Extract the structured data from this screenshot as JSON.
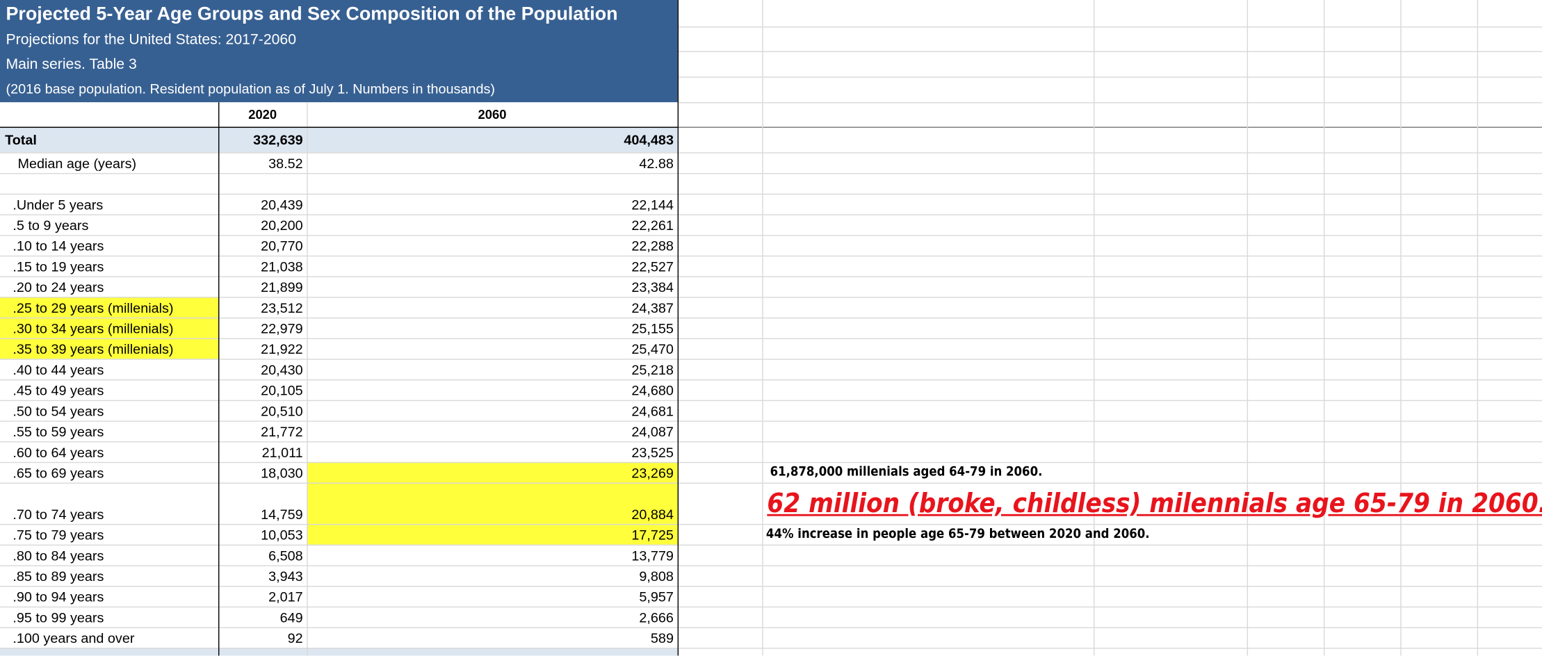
{
  "header": {
    "title": "Projected 5-Year Age Groups and Sex Composition of the Population",
    "subtitle": "Projections for the United States: 2017-2060",
    "series": "Main series. Table 3",
    "note": "(2016 base population. Resident population as of July 1. Numbers in thousands)"
  },
  "table": {
    "columns": [
      "2020",
      "2060"
    ],
    "rows": [
      [
        "Total",
        "332,639",
        "404,483"
      ],
      [
        "Median age (years)",
        "38.52",
        "42.88"
      ],
      [
        ".Under 5 years",
        "20,439",
        "22,144"
      ],
      [
        ".5 to 9 years",
        "20,200",
        "22,261"
      ],
      [
        ".10 to 14 years",
        "20,770",
        "22,288"
      ],
      [
        ".15 to 19 years",
        "21,038",
        "22,527"
      ],
      [
        ".20 to 24 years",
        "21,899",
        "23,384"
      ],
      [
        ".25 to 29 years (millenials)",
        "23,512",
        "24,387"
      ],
      [
        ".30 to 34 years (millenials)",
        "22,979",
        "25,155"
      ],
      [
        ".35 to 39 years (millenials)",
        "21,922",
        "25,470"
      ],
      [
        ".40 to 44 years",
        "20,430",
        "25,218"
      ],
      [
        ".45 to 49 years",
        "20,105",
        "24,680"
      ],
      [
        ".50 to 54 years",
        "20,510",
        "24,681"
      ],
      [
        ".55 to 59 years",
        "21,772",
        "24,087"
      ],
      [
        ".60 to 64 years",
        "21,011",
        "23,525"
      ],
      [
        ".65 to 69 years",
        "18,030",
        "23,269"
      ],
      [
        ".70 to 74 years",
        "14,759",
        "20,884"
      ],
      [
        ".75 to 79 years",
        "10,053",
        "17,725"
      ],
      [
        ".80 to 84 years",
        "6,508",
        "13,779"
      ],
      [
        ".85 to 89 years",
        "3,943",
        "9,808"
      ],
      [
        ".90 to 94 years",
        "2,017",
        "5,957"
      ],
      [
        ".95 to 99 years",
        "649",
        "2,666"
      ],
      [
        ".100 years and over",
        "92",
        "589"
      ]
    ]
  },
  "annotations": [
    "61,878,000 millenials aged 64-79 in 2060.",
    "62 million (broke, childless) milennials age 65-79 in 2060.",
    "44% increase in people age 65-79 between 2020 and 2060."
  ]
}
